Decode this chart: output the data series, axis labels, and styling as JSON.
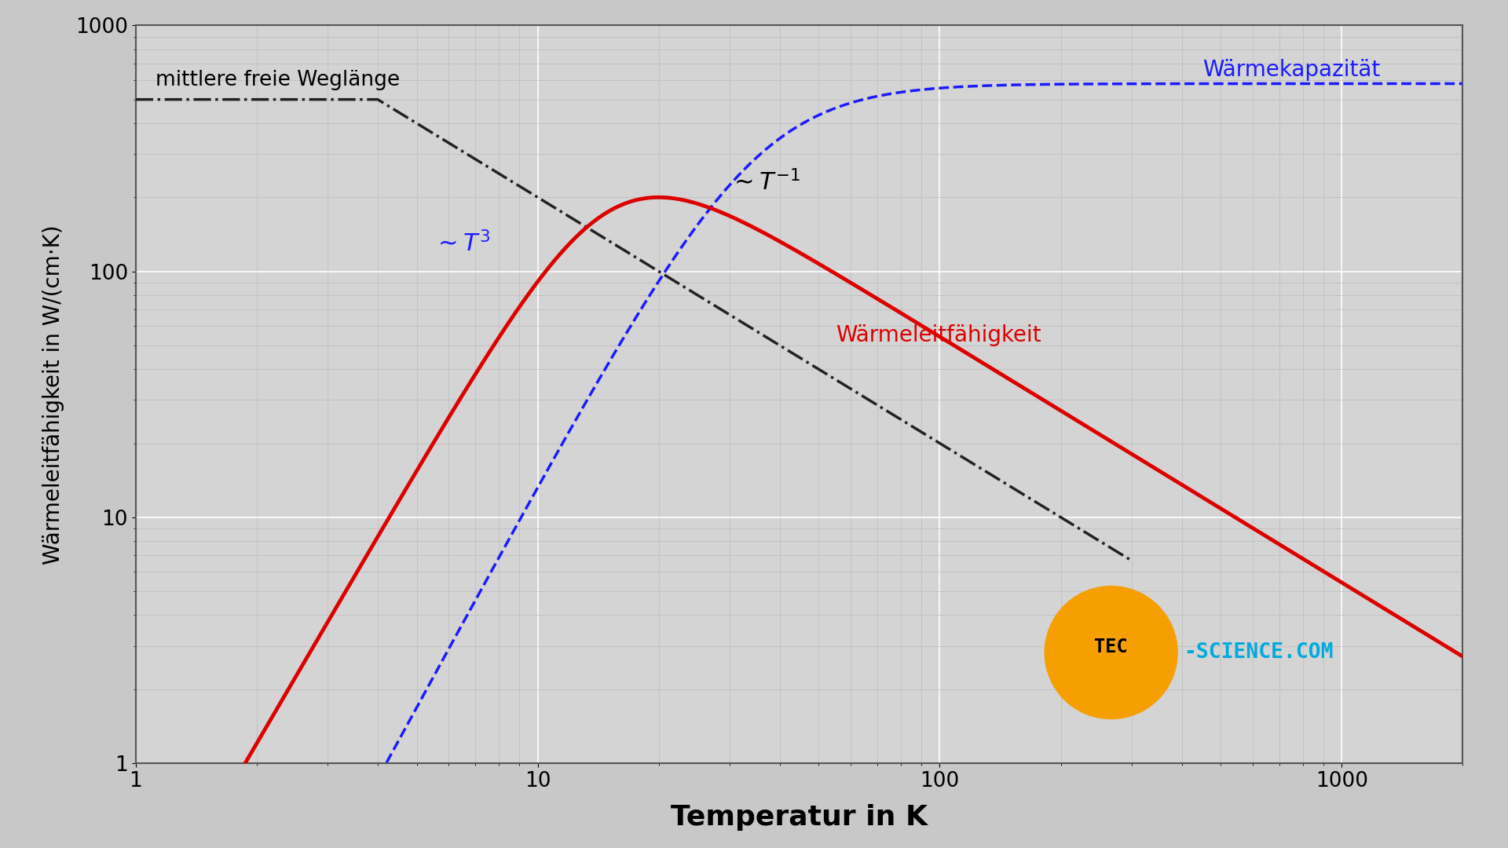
{
  "xlabel": "Temperatur in K",
  "ylabel": "Wärmeleitfähigkeit in W/(cm·K)",
  "xlim": [
    1,
    2000
  ],
  "ylim": [
    1,
    1000
  ],
  "bg_color": "#d4d4d4",
  "outer_bg": "#c8c8c8",
  "grid_major_color": "#ffffff",
  "grid_minor_color": "#bbbbbb",
  "label_waermeleitfaehigkeit": "Wärmeleitfähigkeit",
  "label_waermekapazitaet": "Wärmekapazität",
  "label_mittlere": "mittlere freie Weglänge",
  "color_red": "#dd0000",
  "color_blue": "#1a1aff",
  "color_black_dash": "#222222",
  "logo_color": "#f5a000",
  "logo_text_color": "#00aadd"
}
